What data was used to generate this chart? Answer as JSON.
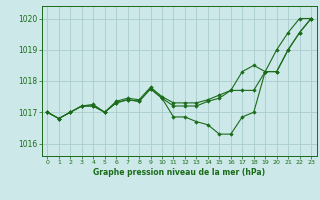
{
  "title": "Graphe pression niveau de la mer (hPa)",
  "bg_color": "#cce8e8",
  "grid_color": "#aacccc",
  "line_color": "#1a6b1a",
  "marker_color": "#1a6b1a",
  "xlim": [
    -0.5,
    23.5
  ],
  "ylim": [
    1015.6,
    1020.4
  ],
  "yticks": [
    1016,
    1017,
    1018,
    1019,
    1020
  ],
  "xticks": [
    0,
    1,
    2,
    3,
    4,
    5,
    6,
    7,
    8,
    9,
    10,
    11,
    12,
    13,
    14,
    15,
    16,
    17,
    18,
    19,
    20,
    21,
    22,
    23
  ],
  "series": [
    [
      1017.0,
      1016.8,
      1017.0,
      1017.2,
      1017.2,
      1017.0,
      1017.3,
      1017.4,
      1017.35,
      1017.75,
      1017.45,
      1016.85,
      1016.85,
      1016.7,
      1016.6,
      1016.3,
      1016.3,
      1016.85,
      1017.0,
      1018.3,
      1019.0,
      1019.55,
      1020.0,
      1020.0
    ],
    [
      1017.0,
      1016.8,
      1017.0,
      1017.2,
      1017.2,
      1017.0,
      1017.3,
      1017.4,
      1017.35,
      1017.75,
      1017.45,
      1017.2,
      1017.2,
      1017.2,
      1017.35,
      1017.45,
      1017.7,
      1018.3,
      1018.5,
      1018.3,
      1018.3,
      1019.0,
      1019.55,
      1020.0
    ],
    [
      1017.0,
      1016.8,
      1017.0,
      1017.2,
      1017.25,
      1017.0,
      1017.35,
      1017.45,
      1017.4,
      1017.8,
      1017.5,
      1017.3,
      1017.3,
      1017.3,
      1017.4,
      1017.55,
      1017.7,
      1017.7,
      1017.7,
      1018.3,
      1018.3,
      1019.0,
      1019.55,
      1020.0
    ]
  ]
}
